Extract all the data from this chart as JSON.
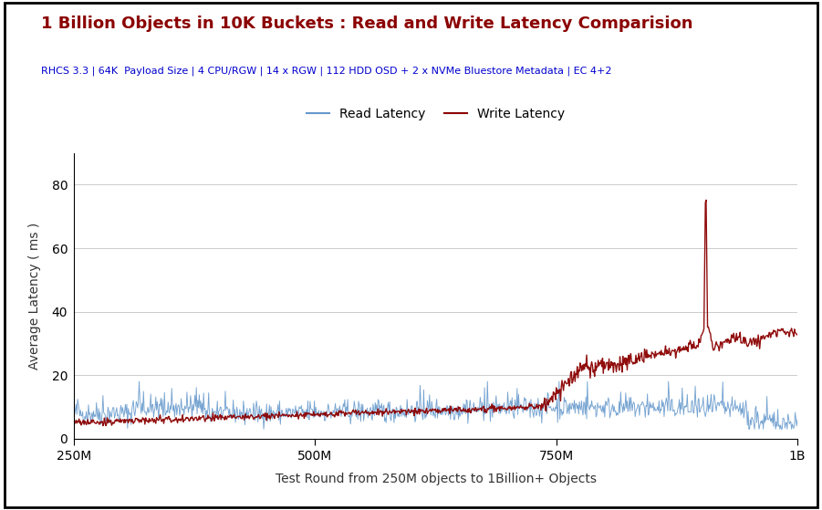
{
  "title": "1 Billion Objects in 10K Buckets : Read and Write Latency Comparision",
  "subtitle": "RHCS 3.3 | 64K  Payload Size | 4 CPU/RGW | 14 x RGW | 112 HDD OSD + 2 x NVMe Bluestore Metadata | EC 4+2",
  "xlabel": "Test Round from 250M objects to 1Billion+ Objects",
  "ylabel": "Average Latency ( ms )",
  "title_color": "#8B0000",
  "subtitle_color": "#0000CD",
  "read_color": "#6699CC",
  "write_color": "#8B0000",
  "background_color": "#FFFFFF",
  "border_color": "#000000",
  "xlim_min": 0,
  "xlim_max": 1000,
  "ylim_min": 0,
  "ylim_max": 90,
  "yticks": [
    0,
    20,
    40,
    60,
    80
  ],
  "xtick_labels": [
    "250M",
    "500M",
    "750M",
    "1B"
  ],
  "xtick_positions": [
    0,
    333,
    667,
    1000
  ],
  "legend_read": "Read Latency",
  "legend_write": "Write Latency",
  "n_points": 1000,
  "seed": 42
}
